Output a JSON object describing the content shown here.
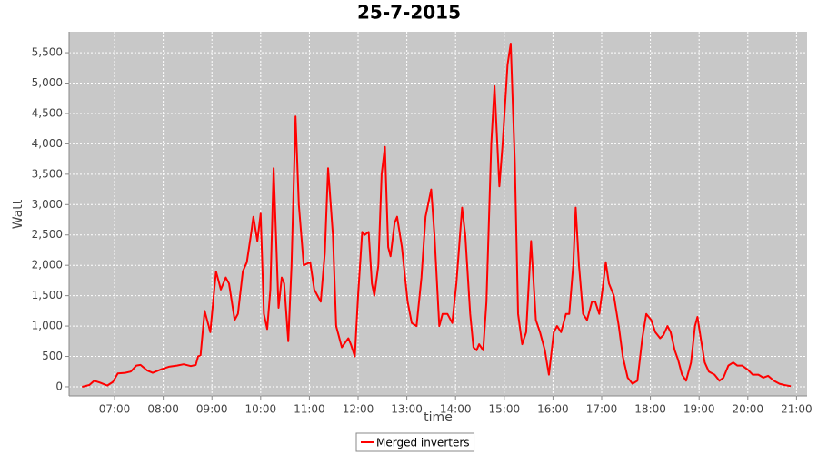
{
  "chart_data": {
    "type": "line",
    "title": "25-7-2015",
    "x_label": "time",
    "y_label": "Watt",
    "xlim": [
      "06:04",
      "21:13"
    ],
    "xticks": [
      "07:00",
      "08:00",
      "09:00",
      "10:00",
      "11:00",
      "12:00",
      "13:00",
      "14:00",
      "15:00",
      "16:00",
      "17:00",
      "18:00",
      "19:00",
      "20:00",
      "21:00"
    ],
    "ylim": [
      -150,
      5845
    ],
    "yticks": [
      0,
      500,
      {
        "value": 1000,
        "label": "1,000"
      },
      {
        "value": 1500,
        "label": "1,500"
      },
      {
        "value": 2000,
        "label": "2,000"
      },
      {
        "value": 2500,
        "label": "2,500"
      },
      {
        "value": 3000,
        "label": "3,000"
      },
      {
        "value": 3500,
        "label": "3,500"
      },
      {
        "value": 4000,
        "label": "4,000"
      },
      {
        "value": 4500,
        "label": "4,500"
      },
      {
        "value": 5000,
        "label": "5,000"
      },
      {
        "value": 5500,
        "label": "5,500"
      }
    ],
    "grid": true,
    "legend": "bottom",
    "x": [
      "06:20",
      "06:29",
      "06:35",
      "06:42",
      "06:51",
      "06:58",
      "07:04",
      "07:13",
      "07:20",
      "07:27",
      "07:32",
      "07:40",
      "07:47",
      "07:58",
      "08:07",
      "08:17",
      "08:25",
      "08:34",
      "08:40",
      "08:43",
      "08:46",
      "08:51",
      "08:58",
      "09:05",
      "09:11",
      "09:17",
      "09:21",
      "09:28",
      "09:32",
      "09:38",
      "09:43",
      "09:48",
      "09:51",
      "09:56",
      "10:00",
      "10:04",
      "10:08",
      "10:12",
      "10:16",
      "10:22",
      "10:26",
      "10:29",
      "10:34",
      "10:38",
      "10:43",
      "10:47",
      "10:53",
      "11:01",
      "11:06",
      "11:14",
      "11:19",
      "11:23",
      "11:29",
      "11:33",
      "11:40",
      "11:48",
      "11:51",
      "11:56",
      "12:00",
      "12:05",
      "12:08",
      "12:13",
      "12:17",
      "12:20",
      "12:25",
      "12:29",
      "12:33",
      "12:37",
      "12:40",
      "12:45",
      "12:48",
      "12:54",
      "13:01",
      "13:06",
      "13:12",
      "13:18",
      "13:23",
      "13:30",
      "13:34",
      "13:40",
      "13:44",
      "13:50",
      "13:56",
      "14:01",
      "14:08",
      "14:12",
      "14:18",
      "14:22",
      "14:26",
      "14:29",
      "14:34",
      "14:38",
      "14:44",
      "14:48",
      "14:54",
      "14:58",
      "15:04",
      "15:08",
      "15:13",
      "15:17",
      "15:22",
      "15:27",
      "15:33",
      "15:39",
      "15:44",
      "15:50",
      "15:55",
      "16:01",
      "16:05",
      "16:10",
      "16:16",
      "16:20",
      "16:25",
      "16:28",
      "16:32",
      "16:37",
      "16:42",
      "16:48",
      "16:52",
      "16:57",
      "17:01",
      "17:05",
      "17:09",
      "17:15",
      "17:21",
      "17:26",
      "17:32",
      "17:38",
      "17:44",
      "17:50",
      "17:55",
      "18:01",
      "18:06",
      "18:12",
      "18:16",
      "18:21",
      "18:25",
      "18:30",
      "18:34",
      "18:39",
      "18:44",
      "18:50",
      "18:55",
      "18:58",
      "19:02",
      "19:07",
      "19:12",
      "19:19",
      "19:25",
      "19:30",
      "19:36",
      "19:42",
      "19:47",
      "19:53",
      "20:00",
      "20:06",
      "20:13",
      "20:19",
      "20:25",
      "20:32",
      "20:39",
      "20:45",
      "20:53"
    ],
    "series": [
      {
        "name": "Merged inverters",
        "color": "#ff0000",
        "values": [
          0,
          30,
          100,
          70,
          20,
          80,
          220,
          230,
          250,
          350,
          360,
          270,
          230,
          290,
          330,
          350,
          370,
          340,
          360,
          500,
          520,
          1250,
          900,
          1900,
          1600,
          1800,
          1700,
          1100,
          1200,
          1900,
          2050,
          2500,
          2800,
          2400,
          2850,
          1200,
          950,
          1600,
          3600,
          1300,
          1800,
          1700,
          750,
          2000,
          4450,
          3000,
          2000,
          2050,
          1600,
          1400,
          2200,
          3600,
          2500,
          1000,
          650,
          800,
          700,
          500,
          1500,
          2550,
          2500,
          2550,
          1700,
          1500,
          2000,
          3500,
          3950,
          2300,
          2150,
          2700,
          2800,
          2300,
          1400,
          1050,
          1000,
          1800,
          2800,
          3250,
          2500,
          1000,
          1200,
          1200,
          1050,
          1700,
          2950,
          2500,
          1200,
          650,
          600,
          700,
          600,
          1400,
          4000,
          4950,
          3300,
          4000,
          5300,
          5650,
          3700,
          1200,
          700,
          900,
          2400,
          1100,
          900,
          600,
          200,
          900,
          1000,
          900,
          1200,
          1200,
          2000,
          2950,
          2000,
          1200,
          1100,
          1400,
          1400,
          1200,
          1600,
          2050,
          1700,
          1500,
          1000,
          500,
          150,
          50,
          100,
          800,
          1200,
          1100,
          900,
          800,
          850,
          1000,
          900,
          600,
          450,
          200,
          100,
          400,
          1000,
          1150,
          800,
          400,
          250,
          200,
          100,
          150,
          350,
          400,
          350,
          350,
          280,
          200,
          200,
          150,
          180,
          100,
          50,
          30,
          10
        ]
      }
    ]
  }
}
